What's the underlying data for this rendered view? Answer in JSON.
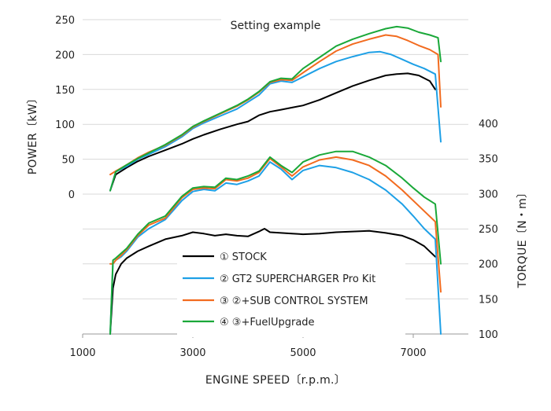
{
  "chart_data": {
    "type": "line",
    "title": "Setting example",
    "xlabel": "ENGINE SPEED〔r.p.m.〕",
    "ylabel_left": "POWER〔kW〕",
    "ylabel_right": "TORQUE〔N・m〕",
    "xlim": [
      1000,
      8000
    ],
    "ylim_left": [
      0,
      250
    ],
    "ylim_right": [
      100,
      400
    ],
    "x_ticks": [
      "1000",
      "3000",
      "5000",
      "7000"
    ],
    "y_left_ticks": [
      "0",
      "50",
      "100",
      "150",
      "200",
      "250"
    ],
    "y_right_ticks": [
      "100",
      "150",
      "200",
      "250",
      "300",
      "350",
      "400"
    ],
    "grid": "horizontal",
    "legend_position": "bottom-center",
    "colors": {
      "stock": "#000000",
      "gt2": "#1ea0e6",
      "sub_control": "#f26b1f",
      "fuel": "#1aa839",
      "grid": "#d9d9d9",
      "axis": "#999999"
    },
    "power_series": [
      {
        "name": "① STOCK",
        "color": "#000000",
        "x": [
          1500,
          1600,
          1800,
          2000,
          2200,
          2500,
          2800,
          3000,
          3200,
          3500,
          3800,
          4000,
          4200,
          4400,
          4600,
          4800,
          5000,
          5300,
          5600,
          5900,
          6200,
          6500,
          6700,
          6900,
          7100,
          7300,
          7400
        ],
        "y": [
          5,
          28,
          38,
          47,
          54,
          63,
          72,
          79,
          85,
          93,
          100,
          104,
          113,
          118,
          121,
          124,
          127,
          135,
          145,
          155,
          163,
          170,
          172,
          173,
          170,
          162,
          150
        ]
      },
      {
        "name": "② GT2 SUPERCHARGER Pro Kit",
        "color": "#1ea0e6",
        "x": [
          1500,
          1600,
          1800,
          2000,
          2200,
          2500,
          2800,
          3000,
          3200,
          3500,
          3800,
          4000,
          4200,
          4400,
          4600,
          4800,
          5000,
          5300,
          5600,
          5900,
          6200,
          6400,
          6600,
          6800,
          7000,
          7200,
          7400,
          7500
        ],
        "y": [
          5,
          32,
          40,
          50,
          57,
          68,
          82,
          94,
          102,
          112,
          122,
          132,
          142,
          158,
          162,
          160,
          168,
          180,
          190,
          197,
          203,
          204,
          200,
          193,
          186,
          180,
          172,
          75
        ]
      },
      {
        "name": "③ ②+SUB CONTROL SYSTEM",
        "color": "#f26b1f",
        "x": [
          1500,
          1600,
          1800,
          2000,
          2200,
          2500,
          2800,
          3000,
          3200,
          3500,
          3800,
          4000,
          4200,
          4400,
          4600,
          4800,
          5000,
          5300,
          5600,
          5900,
          6200,
          6500,
          6700,
          6900,
          7100,
          7300,
          7450,
          7500
        ],
        "y": [
          28,
          33,
          42,
          52,
          60,
          70,
          84,
          96,
          104,
          115,
          126,
          135,
          146,
          160,
          164,
          163,
          174,
          190,
          205,
          215,
          222,
          228,
          226,
          220,
          213,
          207,
          200,
          125
        ]
      },
      {
        "name": "④ ③+FuelUpgrade",
        "color": "#1aa839",
        "x": [
          1500,
          1600,
          1800,
          2000,
          2200,
          2500,
          2800,
          3000,
          3200,
          3500,
          3800,
          4000,
          4200,
          4400,
          4600,
          4800,
          5000,
          5300,
          5600,
          5900,
          6200,
          6500,
          6700,
          6900,
          7100,
          7300,
          7450,
          7500
        ],
        "y": [
          5,
          32,
          42,
          51,
          59,
          71,
          85,
          97,
          105,
          116,
          127,
          136,
          147,
          161,
          166,
          165,
          180,
          196,
          212,
          222,
          230,
          237,
          240,
          238,
          232,
          228,
          224,
          190
        ]
      }
    ],
    "torque_series": [
      {
        "name": "① STOCK",
        "color": "#000000",
        "x": [
          1500,
          1550,
          1600,
          1700,
          1800,
          2000,
          2200,
          2500,
          2800,
          3000,
          3200,
          3400,
          3600,
          3800,
          4000,
          4200,
          4300,
          4400,
          4600,
          4800,
          5000,
          5300,
          5600,
          5900,
          6200,
          6500,
          6800,
          7000,
          7200,
          7400
        ],
        "y": [
          100,
          165,
          185,
          200,
          208,
          218,
          225,
          235,
          240,
          245,
          243,
          240,
          242,
          240,
          239,
          246,
          250,
          245,
          244,
          243,
          242,
          243,
          245,
          246,
          247,
          244,
          240,
          234,
          225,
          210
        ]
      },
      {
        "name": "② GT2 SUPERCHARGER Pro Kit",
        "color": "#1ea0e6",
        "x": [
          1500,
          1550,
          1600,
          1700,
          1800,
          2000,
          2200,
          2500,
          2800,
          3000,
          3200,
          3400,
          3600,
          3800,
          4000,
          4200,
          4400,
          4600,
          4800,
          5000,
          5300,
          5600,
          5900,
          6200,
          6500,
          6800,
          7000,
          7200,
          7400,
          7500
        ],
        "y": [
          100,
          200,
          205,
          210,
          218,
          238,
          250,
          263,
          290,
          303,
          306,
          304,
          315,
          313,
          318,
          325,
          345,
          335,
          320,
          333,
          340,
          337,
          330,
          320,
          305,
          285,
          268,
          250,
          235,
          100
        ]
      },
      {
        "name": "③ ②+SUB CONTROL SYSTEM",
        "color": "#f26b1f",
        "x": [
          1500,
          1550,
          1600,
          1700,
          1800,
          2000,
          2200,
          2500,
          2800,
          3000,
          3200,
          3400,
          3600,
          3800,
          4000,
          4200,
          4400,
          4600,
          4800,
          5000,
          5300,
          5600,
          5900,
          6200,
          6500,
          6800,
          7000,
          7200,
          7400,
          7500
        ],
        "y": [
          200,
          200,
          205,
          212,
          220,
          240,
          255,
          265,
          294,
          306,
          308,
          307,
          320,
          318,
          322,
          330,
          350,
          338,
          325,
          338,
          348,
          352,
          348,
          340,
          325,
          305,
          290,
          275,
          260,
          160
        ]
      },
      {
        "name": "④ ③+FuelUpgrade",
        "color": "#1aa839",
        "x": [
          1500,
          1550,
          1600,
          1700,
          1800,
          2000,
          2200,
          2500,
          2800,
          3000,
          3200,
          3400,
          3600,
          3800,
          4000,
          4200,
          4400,
          4600,
          4800,
          5000,
          5300,
          5600,
          5900,
          6200,
          6500,
          6800,
          7000,
          7200,
          7400,
          7500
        ],
        "y": [
          100,
          205,
          208,
          215,
          222,
          242,
          258,
          268,
          296,
          308,
          310,
          309,
          322,
          320,
          325,
          332,
          352,
          340,
          330,
          345,
          355,
          360,
          360,
          352,
          340,
          322,
          308,
          295,
          285,
          200
        ]
      }
    ],
    "legend": [
      "① STOCK",
      "② GT2 SUPERCHARGER Pro Kit",
      "③ ②+SUB CONTROL SYSTEM",
      "④ ③+FuelUpgrade"
    ]
  }
}
